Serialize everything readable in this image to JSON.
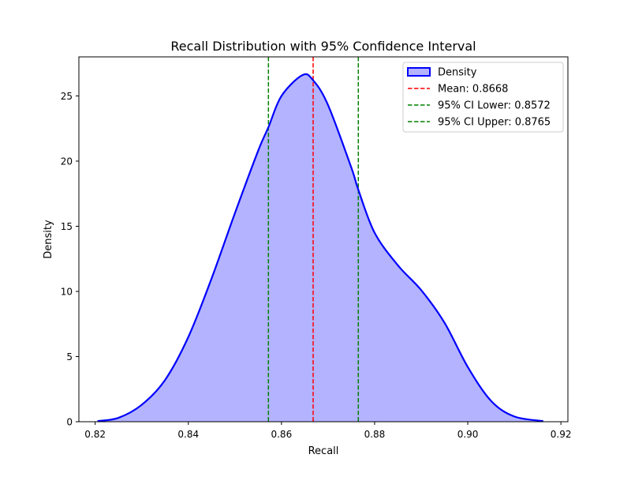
{
  "chart_data": {
    "type": "area",
    "title": "Recall Distribution with 95% Confidence Interval",
    "xlabel": "Recall",
    "ylabel": "Density",
    "xlim": [
      0.8165,
      0.9215
    ],
    "ylim": [
      0,
      28
    ],
    "xticks": [
      0.82,
      0.84,
      0.86,
      0.88,
      0.9,
      0.92
    ],
    "xtick_labels": [
      "0.82",
      "0.84",
      "0.86",
      "0.88",
      "0.90",
      "0.92"
    ],
    "yticks": [
      0,
      5,
      10,
      15,
      20,
      25
    ],
    "ytick_labels": [
      "0",
      "5",
      "10",
      "15",
      "20",
      "25"
    ],
    "grid": false,
    "legend_position": "top-right",
    "series": [
      {
        "name": "Density",
        "kind": "kde",
        "color": "#0000ff",
        "fill": "#b3b3ff",
        "x": [
          0.8205,
          0.825,
          0.83,
          0.835,
          0.84,
          0.845,
          0.85,
          0.855,
          0.8572,
          0.86,
          0.8645,
          0.8668,
          0.87,
          0.875,
          0.8765,
          0.88,
          0.885,
          0.89,
          0.895,
          0.9,
          0.905,
          0.91,
          0.9162
        ],
        "y": [
          0.05,
          0.3,
          1.3,
          3.2,
          6.5,
          11.0,
          16.0,
          20.8,
          22.6,
          25.0,
          26.6,
          26.2,
          24.3,
          19.5,
          17.8,
          14.5,
          12.0,
          10.1,
          7.6,
          4.2,
          1.6,
          0.4,
          0.05
        ]
      }
    ],
    "vlines": [
      {
        "name": "Mean: 0.8668",
        "x": 0.8668,
        "color": "#ff0000",
        "style": "dashed"
      },
      {
        "name": "95% CI Lower: 0.8572",
        "x": 0.8572,
        "color": "#008000",
        "style": "dashed"
      },
      {
        "name": "95% CI Upper: 0.8765",
        "x": 0.8765,
        "color": "#008000",
        "style": "dashed"
      }
    ]
  }
}
